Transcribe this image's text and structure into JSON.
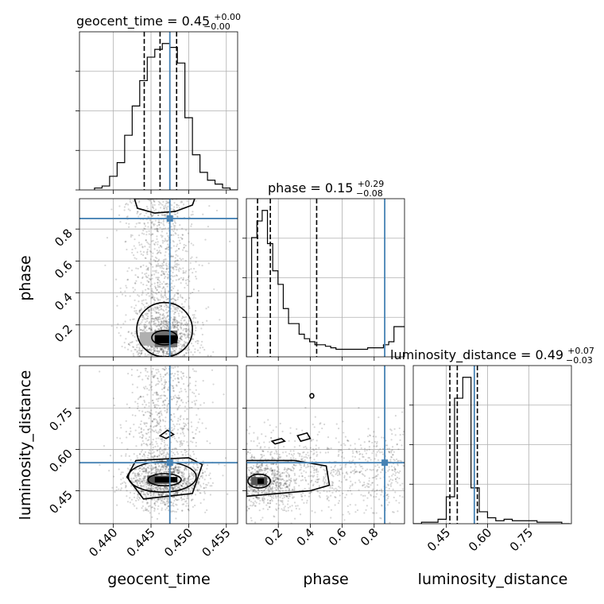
{
  "chart_data": {
    "type": "corner",
    "parameters": [
      "geocent_time",
      "phase",
      "luminosity_distance"
    ],
    "truths": [
      0.4475,
      0.866,
      0.552
    ],
    "truth_color": "#4682b4",
    "titles": [
      {
        "param": "geocent_time",
        "median": "0.45",
        "plus": "+0.00",
        "minus": "−0.00"
      },
      {
        "param": "phase",
        "median": "0.15",
        "plus": "+0.29",
        "minus": "−0.08"
      },
      {
        "param": "luminosity_distance",
        "median": "0.49",
        "plus": "+0.07",
        "minus": "−0.03"
      }
    ],
    "axes": {
      "geocent_time": {
        "range": [
          0.4355,
          0.4565
        ],
        "ticks": [
          0.44,
          0.445,
          0.45,
          0.455
        ],
        "tick_labels": [
          "0.440",
          "0.445",
          "0.450",
          "0.455"
        ]
      },
      "phase": {
        "range": [
          0.0,
          0.99
        ],
        "ticks": [
          0.2,
          0.4,
          0.6,
          0.8
        ],
        "tick_labels": [
          "0.2",
          "0.4",
          "0.6",
          "0.8"
        ]
      },
      "luminosity_distance": {
        "range": [
          0.33,
          0.905
        ],
        "ticks": [
          0.45,
          0.6,
          0.75
        ],
        "tick_labels": [
          "0.45",
          "0.60",
          "0.75"
        ]
      }
    },
    "histograms": {
      "geocent_time": {
        "bin_edges": [
          0.4375,
          0.4385,
          0.4395,
          0.4405,
          0.4415,
          0.4425,
          0.4435,
          0.4445,
          0.4455,
          0.4465,
          0.4475,
          0.4485,
          0.4495,
          0.4505,
          0.4515,
          0.4525,
          0.4535,
          0.4545,
          0.4555,
          0.4565
        ],
        "counts": [
          1,
          2,
          7,
          14,
          28,
          43,
          56,
          68,
          72,
          75,
          73,
          65,
          37,
          18,
          9,
          5,
          3,
          1,
          0
        ],
        "quantiles": [
          0.4441,
          0.4462,
          0.4484
        ]
      },
      "phase": {
        "bin_edges": [
          0.0,
          0.033,
          0.066,
          0.099,
          0.132,
          0.165,
          0.198,
          0.231,
          0.264,
          0.297,
          0.33,
          0.363,
          0.396,
          0.429,
          0.462,
          0.495,
          0.528,
          0.561,
          0.594,
          0.627,
          0.66,
          0.693,
          0.726,
          0.759,
          0.792,
          0.825,
          0.858,
          0.891,
          0.924,
          0.957,
          0.99
        ],
        "counts": [
          40,
          79,
          90,
          97,
          75,
          57,
          48,
          32,
          22,
          22,
          15,
          12,
          10,
          8,
          8,
          7,
          6,
          5,
          5,
          5,
          5,
          5,
          5,
          6,
          6,
          6,
          8,
          10,
          20,
          20
        ],
        "quantiles": [
          0.07,
          0.15,
          0.44
        ]
      },
      "luminosity_distance": {
        "bin_edges": [
          0.33,
          0.36,
          0.39,
          0.42,
          0.45,
          0.48,
          0.51,
          0.54,
          0.57,
          0.6,
          0.63,
          0.66,
          0.69,
          0.72,
          0.75,
          0.78,
          0.81,
          0.84,
          0.87,
          0.9
        ],
        "counts": [
          0,
          1,
          1,
          3,
          18,
          84,
          98,
          24,
          8,
          4,
          2,
          3,
          2,
          2,
          2,
          1,
          1,
          1,
          0
        ],
        "quantiles": [
          0.463,
          0.49,
          0.563
        ]
      }
    },
    "scatter_seed": 7
  }
}
